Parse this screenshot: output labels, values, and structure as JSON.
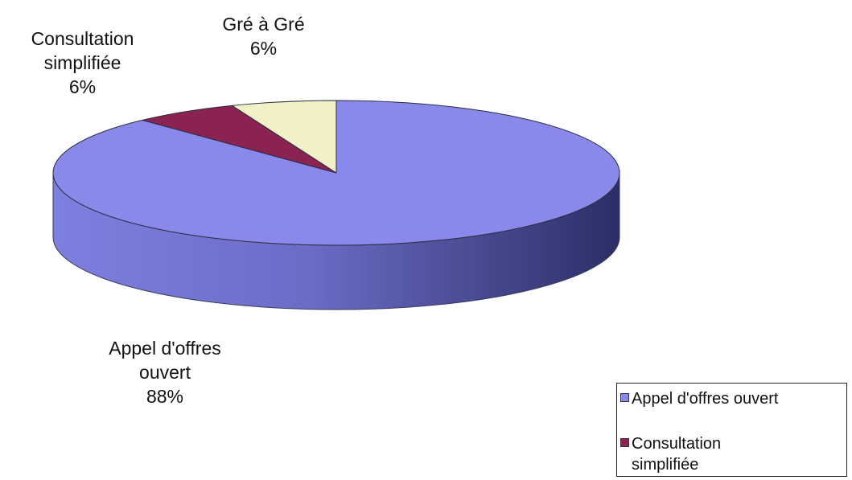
{
  "chart_data": {
    "type": "pie",
    "title": "",
    "style": "3d",
    "slices": [
      {
        "label_lines": [
          "Appel d'offres",
          "ouvert"
        ],
        "legend_lines": [
          "Appel d'offres ouvert"
        ],
        "value": 88,
        "value_label": "88%",
        "color": "#8889ea",
        "side_color": "#5a5cb8"
      },
      {
        "label_lines": [
          "Consultation",
          "simplifiée"
        ],
        "legend_lines": [
          "Consultation",
          "simplifiée"
        ],
        "value": 6,
        "value_label": "6%",
        "color": "#8a2352",
        "side_color": "#5e1638"
      },
      {
        "label_lines": [
          "Gré à Gré"
        ],
        "legend_lines": [],
        "value": 6,
        "value_label": "6%",
        "color": "#f1f0c6",
        "side_color": "#c8c79e"
      }
    ],
    "legend_position": "bottom-right"
  }
}
